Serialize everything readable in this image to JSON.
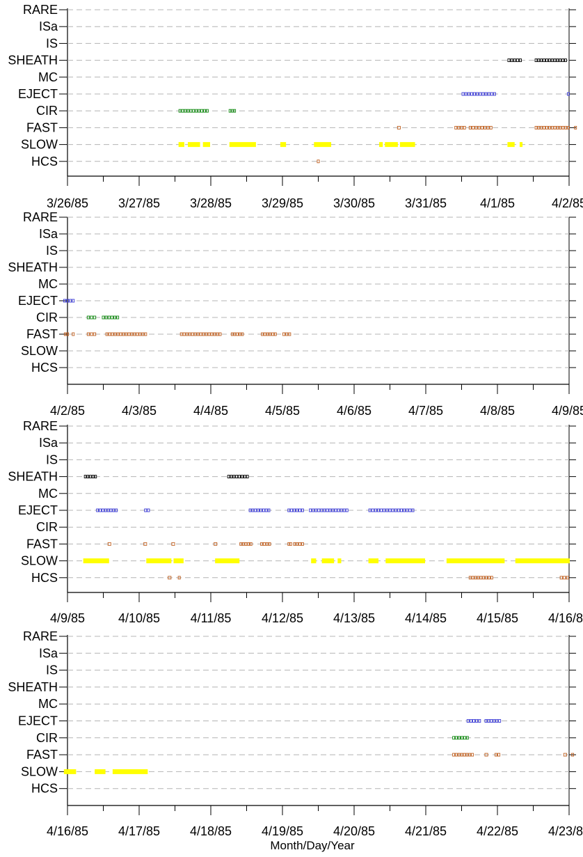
{
  "colors": {
    "SHEATH": "#000000",
    "EJECT": "#3b3bd6",
    "CIR": "#118a11",
    "FAST": "#c06020",
    "SLOW": "#ffff00",
    "HCS": "#c06020",
    "grid": "#b4b4b4"
  },
  "chart_data": [
    {
      "type": "timeline",
      "categories": [
        "RARE",
        "ISa",
        "IS",
        "SHEATH",
        "MC",
        "EJECT",
        "CIR",
        "FAST",
        "SLOW",
        "HCS"
      ],
      "x_tick_labels": [
        "3/26/85",
        "3/27/85",
        "3/28/85",
        "3/29/85",
        "3/30/85",
        "3/31/85",
        "4/1/85",
        "4/2/85"
      ],
      "xlim_days": [
        0,
        7
      ],
      "intervals": [
        {
          "category": "SHEATH",
          "start": 6.14,
          "end": 6.34
        },
        {
          "category": "SHEATH",
          "start": 6.52,
          "end": 6.97
        },
        {
          "category": "EJECT",
          "start": 5.5,
          "end": 5.98
        },
        {
          "category": "EJECT",
          "start": 6.97,
          "end": 7.12
        },
        {
          "category": "CIR",
          "start": 1.55,
          "end": 1.97
        },
        {
          "category": "CIR",
          "start": 2.25,
          "end": 2.35
        },
        {
          "category": "FAST",
          "start": 4.6,
          "end": 4.65
        },
        {
          "category": "FAST",
          "start": 5.4,
          "end": 5.56
        },
        {
          "category": "FAST",
          "start": 5.6,
          "end": 5.93
        },
        {
          "category": "FAST",
          "start": 6.52,
          "end": 7.02
        },
        {
          "category": "FAST",
          "start": 7.07,
          "end": 7.12
        },
        {
          "category": "SLOW",
          "start": 1.55,
          "end": 1.63
        },
        {
          "category": "SLOW",
          "start": 1.68,
          "end": 1.85
        },
        {
          "category": "SLOW",
          "start": 1.89,
          "end": 1.99
        },
        {
          "category": "SLOW",
          "start": 2.26,
          "end": 2.63
        },
        {
          "category": "SLOW",
          "start": 2.97,
          "end": 3.05
        },
        {
          "category": "SLOW",
          "start": 3.44,
          "end": 3.68
        },
        {
          "category": "SLOW",
          "start": 4.35,
          "end": 4.4
        },
        {
          "category": "SLOW",
          "start": 4.43,
          "end": 4.61
        },
        {
          "category": "SLOW",
          "start": 4.64,
          "end": 4.85
        },
        {
          "category": "SLOW",
          "start": 6.14,
          "end": 6.24
        },
        {
          "category": "SLOW",
          "start": 6.31,
          "end": 6.35
        },
        {
          "category": "HCS",
          "start": 3.48,
          "end": 3.52
        }
      ]
    },
    {
      "type": "timeline",
      "categories": [
        "RARE",
        "ISa",
        "IS",
        "SHEATH",
        "MC",
        "EJECT",
        "CIR",
        "FAST",
        "SLOW",
        "HCS"
      ],
      "x_tick_labels": [
        "4/2/85",
        "4/3/85",
        "4/4/85",
        "4/5/85",
        "4/6/85",
        "4/7/85",
        "4/8/85",
        "4/9/85"
      ],
      "xlim_days": [
        0,
        7
      ],
      "intervals": [
        {
          "category": "EJECT",
          "start": -0.1,
          "end": 0.1
        },
        {
          "category": "CIR",
          "start": 0.27,
          "end": 0.4
        },
        {
          "category": "CIR",
          "start": 0.48,
          "end": 0.72
        },
        {
          "category": "FAST",
          "start": -0.05,
          "end": 0.02
        },
        {
          "category": "FAST",
          "start": 0.06,
          "end": 0.1
        },
        {
          "category": "FAST",
          "start": 0.27,
          "end": 0.4
        },
        {
          "category": "FAST",
          "start": 0.53,
          "end": 1.11
        },
        {
          "category": "FAST",
          "start": 1.57,
          "end": 2.15
        },
        {
          "category": "FAST",
          "start": 2.28,
          "end": 2.46
        },
        {
          "category": "FAST",
          "start": 2.7,
          "end": 2.92
        },
        {
          "category": "FAST",
          "start": 3.0,
          "end": 3.12
        }
      ]
    },
    {
      "type": "timeline",
      "categories": [
        "RARE",
        "ISa",
        "IS",
        "SHEATH",
        "MC",
        "EJECT",
        "CIR",
        "FAST",
        "SLOW",
        "HCS"
      ],
      "x_tick_labels": [
        "4/9/85",
        "4/10/85",
        "4/11/85",
        "4/12/85",
        "4/13/85",
        "4/14/85",
        "4/15/85",
        "4/16/85"
      ],
      "xlim_days": [
        0,
        7
      ],
      "intervals": [
        {
          "category": "SHEATH",
          "start": 0.23,
          "end": 0.41
        },
        {
          "category": "SHEATH",
          "start": 2.23,
          "end": 2.53
        },
        {
          "category": "EJECT",
          "start": 0.4,
          "end": 0.7
        },
        {
          "category": "EJECT",
          "start": 1.07,
          "end": 1.15
        },
        {
          "category": "EJECT",
          "start": 2.53,
          "end": 2.83
        },
        {
          "category": "EJECT",
          "start": 3.07,
          "end": 3.3
        },
        {
          "category": "EJECT",
          "start": 3.37,
          "end": 3.92
        },
        {
          "category": "EJECT",
          "start": 4.2,
          "end": 4.84
        },
        {
          "category": "FAST",
          "start": 0.56,
          "end": 0.61
        },
        {
          "category": "FAST",
          "start": 1.06,
          "end": 1.11
        },
        {
          "category": "FAST",
          "start": 1.45,
          "end": 1.5
        },
        {
          "category": "FAST",
          "start": 2.04,
          "end": 2.09
        },
        {
          "category": "FAST",
          "start": 2.4,
          "end": 2.58
        },
        {
          "category": "FAST",
          "start": 2.69,
          "end": 2.84
        },
        {
          "category": "FAST",
          "start": 3.07,
          "end": 3.13
        },
        {
          "category": "FAST",
          "start": 3.15,
          "end": 3.3
        },
        {
          "category": "SLOW",
          "start": 0.22,
          "end": 0.58
        },
        {
          "category": "SLOW",
          "start": 1.1,
          "end": 1.45
        },
        {
          "category": "SLOW",
          "start": 1.48,
          "end": 1.62
        },
        {
          "category": "SLOW",
          "start": 2.06,
          "end": 2.4
        },
        {
          "category": "SLOW",
          "start": 3.4,
          "end": 3.47
        },
        {
          "category": "SLOW",
          "start": 3.55,
          "end": 3.72
        },
        {
          "category": "SLOW",
          "start": 3.77,
          "end": 3.82
        },
        {
          "category": "SLOW",
          "start": 4.2,
          "end": 4.34
        },
        {
          "category": "SLOW",
          "start": 4.44,
          "end": 4.99
        },
        {
          "category": "SLOW",
          "start": 5.29,
          "end": 6.1
        },
        {
          "category": "SLOW",
          "start": 6.25,
          "end": 7.15
        },
        {
          "category": "HCS",
          "start": 1.4,
          "end": 1.45
        },
        {
          "category": "HCS",
          "start": 1.54,
          "end": 1.58
        },
        {
          "category": "HCS",
          "start": 5.6,
          "end": 5.94
        },
        {
          "category": "HCS",
          "start": 6.87,
          "end": 7.0
        }
      ]
    },
    {
      "type": "timeline",
      "categories": [
        "RARE",
        "ISa",
        "IS",
        "SHEATH",
        "MC",
        "EJECT",
        "CIR",
        "FAST",
        "SLOW",
        "HCS"
      ],
      "x_tick_labels": [
        "4/16/85",
        "4/17/85",
        "4/18/85",
        "4/19/85",
        "4/20/85",
        "4/21/85",
        "4/22/85",
        "4/23/85"
      ],
      "xlim_days": [
        0,
        7
      ],
      "xlabel": "Month/Day/Year",
      "intervals": [
        {
          "category": "EJECT",
          "start": 5.57,
          "end": 5.77
        },
        {
          "category": "EJECT",
          "start": 5.82,
          "end": 6.05
        },
        {
          "category": "CIR",
          "start": 5.37,
          "end": 5.6
        },
        {
          "category": "FAST",
          "start": 5.37,
          "end": 5.67
        },
        {
          "category": "FAST",
          "start": 5.82,
          "end": 5.87
        },
        {
          "category": "FAST",
          "start": 5.96,
          "end": 6.04
        },
        {
          "category": "FAST",
          "start": 6.92,
          "end": 6.97
        },
        {
          "category": "FAST",
          "start": 7.03,
          "end": 7.08
        },
        {
          "category": "SLOW",
          "start": -0.05,
          "end": 0.12
        },
        {
          "category": "SLOW",
          "start": 0.38,
          "end": 0.53
        },
        {
          "category": "SLOW",
          "start": 0.63,
          "end": 1.12
        }
      ]
    }
  ]
}
